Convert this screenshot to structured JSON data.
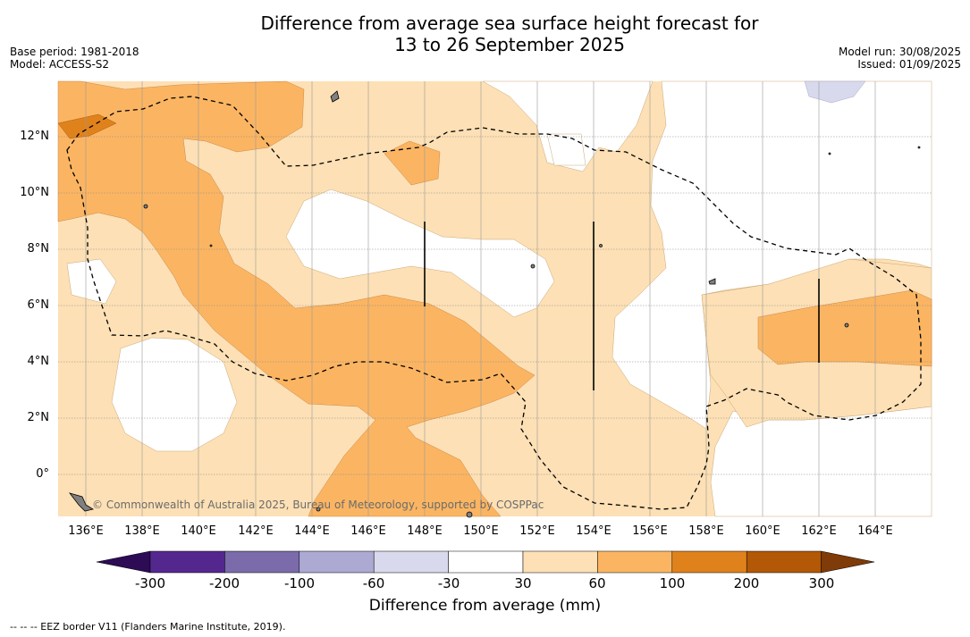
{
  "title_line1": "Difference from average sea surface height forecast for",
  "title_line2": "13 to 26 September 2025",
  "base_period": "Base period: 1981-2018",
  "model": "Model: ACCESS-S2",
  "model_run": "Model run: 30/08/2025",
  "issued": "Issued: 01/09/2025",
  "lat_labels": [
    "12°N",
    "10°N",
    "8°N",
    "6°N",
    "4°N",
    "2°N",
    "0°"
  ],
  "lon_labels": [
    "136°E",
    "138°E",
    "140°E",
    "142°E",
    "144°E",
    "146°E",
    "148°E",
    "150°E",
    "152°E",
    "154°E",
    "156°E",
    "158°E",
    "160°E",
    "162°E",
    "164°E"
  ],
  "copyright": "© Commonwealth of Australia 2025, Bureau of Meteorology, supported by COSPPac",
  "colorbar": {
    "ticks": [
      "-300",
      "-200",
      "-100",
      "-60",
      "-30",
      "30",
      "60",
      "100",
      "200",
      "300"
    ],
    "colors": [
      "#2d0b55",
      "#54278f",
      "#7b6bab",
      "#aca9d2",
      "#d8d9ec",
      "#ffffff",
      "#fde0b5",
      "#fbb562",
      "#e0821c",
      "#b35806",
      "#7f3b08"
    ],
    "title": "Difference from average (mm)"
  },
  "footnote": "--  --  -- EEZ border V11 (Flanders Marine Institute, 2019).",
  "map": {
    "colors": {
      "light_orange": "#fde0b5",
      "mid_orange": "#fbb562",
      "dark_orange": "#e0821c",
      "lavender": "#d8d9ec",
      "land": "#808080"
    }
  }
}
